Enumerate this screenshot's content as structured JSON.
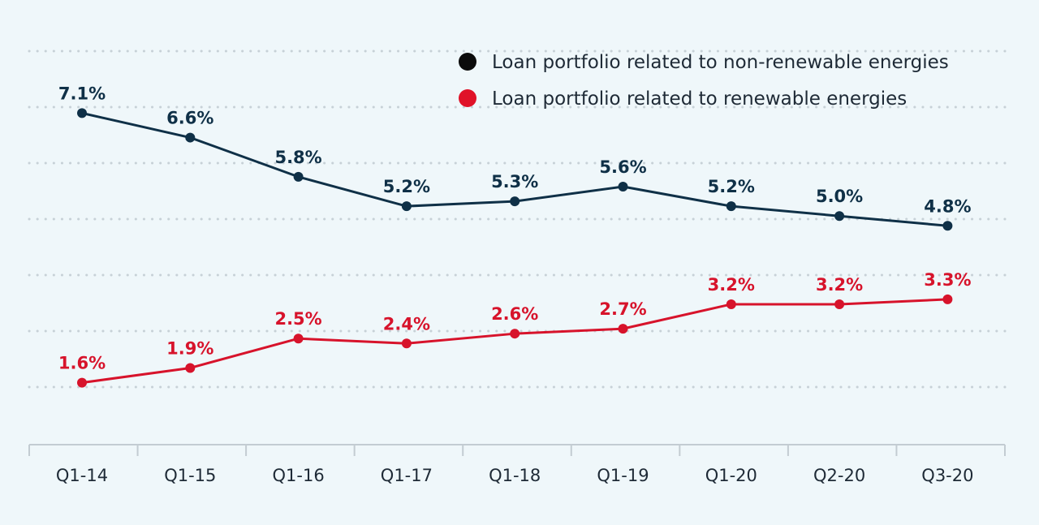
{
  "colors": {
    "non_renewable": "#0f3047",
    "renewable": "#d7132b",
    "legend_non_renewable_dot": "#0b0b0b",
    "legend_renewable_dot": "#e01228",
    "grid": "#c7d1d7",
    "axis": "#c3ccd2"
  },
  "chart_data": {
    "type": "line",
    "categories": [
      "Q1-14",
      "Q1-15",
      "Q1-16",
      "Q1-17",
      "Q1-18",
      "Q1-19",
      "Q1-20",
      "Q2-20",
      "Q3-20"
    ],
    "series": [
      {
        "name": "Loan portfolio related to non-renewable energies",
        "values": [
          7.1,
          6.6,
          5.8,
          5.2,
          5.3,
          5.6,
          5.2,
          5.0,
          4.8
        ],
        "labels": [
          "7.1%",
          "6.6%",
          "5.8%",
          "5.2%",
          "5.3%",
          "5.6%",
          "5.2%",
          "5.0%",
          "4.8%"
        ]
      },
      {
        "name": "Loan portfolio related to renewable energies",
        "values": [
          1.6,
          1.9,
          2.5,
          2.4,
          2.6,
          2.7,
          3.2,
          3.2,
          3.3
        ],
        "labels": [
          "1.6%",
          "1.9%",
          "2.5%",
          "2.4%",
          "2.6%",
          "2.7%",
          "3.2%",
          "3.2%",
          "3.3%"
        ]
      }
    ],
    "ylim": [
      0.6,
      8.0
    ],
    "grid": true,
    "legend_position": "top-right"
  }
}
